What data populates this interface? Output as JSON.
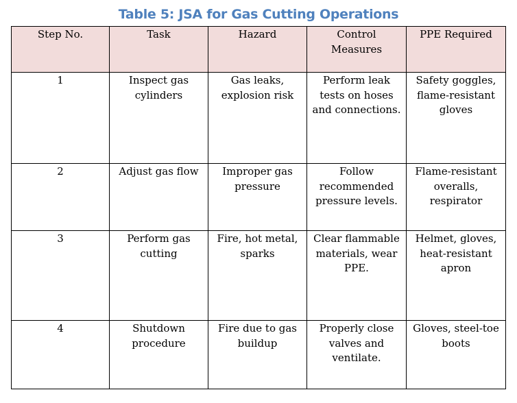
{
  "title": "Table 5: JSA for Gas Cutting Operations",
  "colors": {
    "title": "#4f81bd",
    "header_background": "#f2dcdb",
    "border": "#000000"
  },
  "columns": [
    "Step No.",
    "Task",
    "Hazard",
    "Control Measures",
    "PPE Required"
  ],
  "rows": [
    [
      "1",
      "Inspect gas cylinders",
      "Gas leaks, explosion risk",
      "Perform leak tests on hoses and connections.",
      "Safety goggles, flame-resistant gloves"
    ],
    [
      "2",
      "Adjust gas flow",
      "Improper gas pressure",
      "Follow recommended pressure levels.",
      "Flame-resistant overalls, respirator"
    ],
    [
      "3",
      "Perform gas cutting",
      "Fire, hot metal, sparks",
      "Clear flammable materials, wear PPE.",
      "Helmet, gloves, heat-resistant apron"
    ],
    [
      "4",
      "Shutdown procedure",
      "Fire due to gas buildup",
      "Properly close valves and ventilate.",
      "Gloves, steel-toe boots"
    ]
  ]
}
